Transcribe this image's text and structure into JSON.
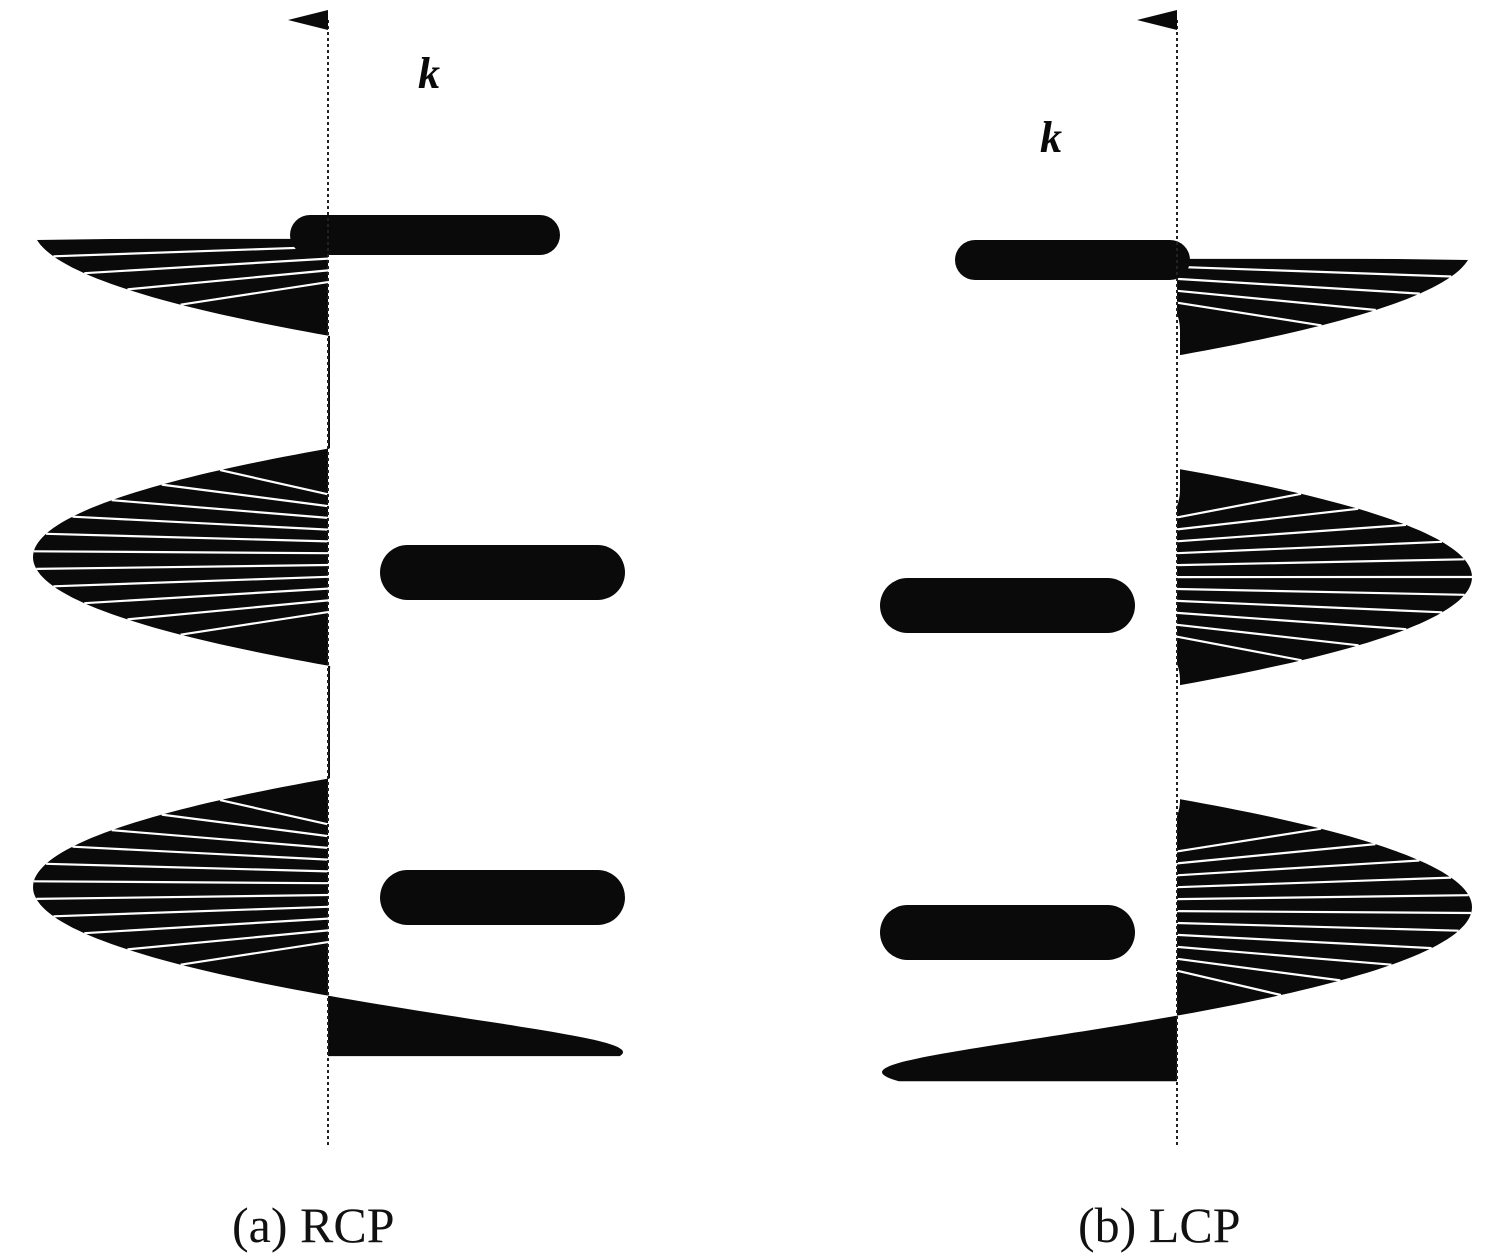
{
  "panels": [
    {
      "id": "rcp",
      "axis_label": "k",
      "caption": "(a) RCP",
      "handedness": "right"
    },
    {
      "id": "lcp",
      "axis_label": "k",
      "caption": "(b) LCP",
      "handedness": "left"
    }
  ],
  "colors": {
    "ink": "#0a0a0a",
    "spokes": "#ffffff",
    "background": "#ffffff"
  }
}
